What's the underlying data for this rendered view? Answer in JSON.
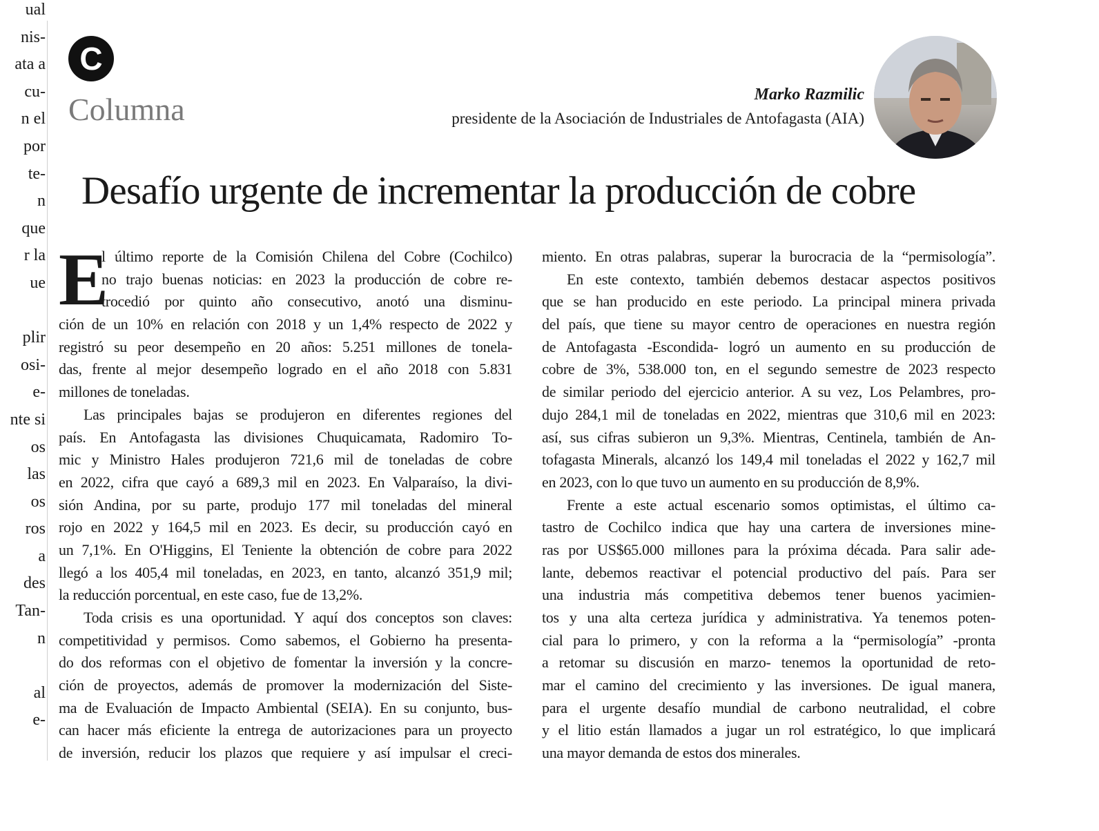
{
  "left_fragments": [
    "ual",
    "nis-",
    "ata a",
    "cu-",
    "n el",
    " por",
    "te-",
    "n",
    "que",
    "r la",
    "ue",
    "",
    "plir",
    "osi-",
    "e-",
    "nte si",
    "os",
    "las",
    "os",
    "ros",
    "a",
    "des",
    "Tan-",
    "n",
    "",
    "al",
    "e-"
  ],
  "header": {
    "logo_letter": "C",
    "section": "Columna",
    "author": "Marko Razmilic",
    "role": "presidente de la Asociación de Industriales de Antofagasta (AIA)"
  },
  "title": "Desafío urgente de incrementar la producción de cobre",
  "article": {
    "drop_cap": "E",
    "left_column": [
      [
        "l último reporte de la Comisión Chilena del Cobre (Cochilco)",
        "no trajo buenas noticias: en 2023 la producción de cobre re-",
        "trocedió por quinto año consecutivo, anotó una disminu-",
        "ción de un 10% en relación con 2018 y un 1,4% respecto de 2022 y",
        "registró su peor desempeño en 20 años: 5.251 millones de tonela-",
        "das, frente al mejor desempeño logrado en el año 2018 con 5.831",
        "millones de toneladas."
      ],
      [
        "Las principales bajas se produjeron en diferentes regiones del",
        "país. En Antofagasta las divisiones Chuquicamata, Radomiro To-",
        "mic y Ministro Hales produjeron 721,6 mil de toneladas de cobre",
        "en 2022, cifra que cayó a 689,3 mil en 2023. En Valparaíso, la divi-",
        "sión Andina, por su parte, produjo 177 mil toneladas del mineral",
        "rojo en 2022 y 164,5 mil en 2023. Es decir, su producción cayó en",
        "un 7,1%. En O'Higgins, El Teniente la obtención de cobre para 2022",
        "llegó a los 405,4 mil toneladas, en 2023, en tanto, alcanzó 351,9 mil;",
        "la reducción porcentual, en este caso, fue de 13,2%."
      ],
      [
        "Toda crisis es una oportunidad. Y aquí dos conceptos son claves:",
        "competitividad y permisos. Como sabemos, el Gobierno ha presenta-",
        "do dos reformas con el objetivo de fomentar la inversión y la concre-",
        "ción de proyectos, además de promover la modernización del Siste-",
        "ma de Evaluación de Impacto Ambiental (SEIA). En su conjunto, bus-",
        "can hacer más eficiente la entrega de autorizaciones para un proyecto",
        "de inversión, reducir los plazos que requiere y así impulsar el creci-"
      ]
    ],
    "right_column": [
      [
        "miento.   En otras palabras, superar la burocracia de la “permisología”."
      ],
      [
        "En este contexto, también debemos destacar aspectos positivos",
        "que se han producido en este periodo. La principal minera privada",
        "del país, que tiene su mayor centro de operaciones en nuestra región",
        "de Antofagasta -Escondida- logró un aumento en su producción de",
        "cobre de 3%, 538.000 ton, en el segundo semestre de 2023 respecto",
        "de similar periodo del ejercicio anterior. A su vez, Los Pelambres, pro-",
        "dujo 284,1 mil de toneladas en 2022, mientras que 310,6 mil en 2023:",
        "así, sus cifras subieron un 9,3%. Mientras, Centinela, también de An-",
        "tofagasta Minerals, alcanzó los 149,4 mil toneladas el 2022 y 162,7 mil",
        "en 2023, con lo que tuvo un aumento en su producción de 8,9%."
      ],
      [
        "Frente a este actual escenario somos optimistas, el último ca-",
        "tastro de Cochilco indica que hay una cartera de inversiones mine-",
        "ras por US$65.000 millones para la próxima década. Para salir ade-",
        "lante, debemos reactivar el potencial productivo del país. Para ser",
        "una industria más competitiva debemos tener buenos yacimien-",
        "tos y una alta certeza jurídica y administrativa. Ya tenemos poten-",
        "cial para lo primero, y con la reforma a la “permisología” -pronta",
        "a retomar su discusión en marzo- tenemos la oportunidad de reto-",
        "mar el camino del crecimiento y las inversiones. De igual manera,",
        "para el urgente desafío mundial de carbono neutralidad, el cobre",
        "y el litio están llamados a jugar un rol estratégico, lo que implicará",
        "una mayor demanda de estos dos minerales."
      ]
    ]
  }
}
